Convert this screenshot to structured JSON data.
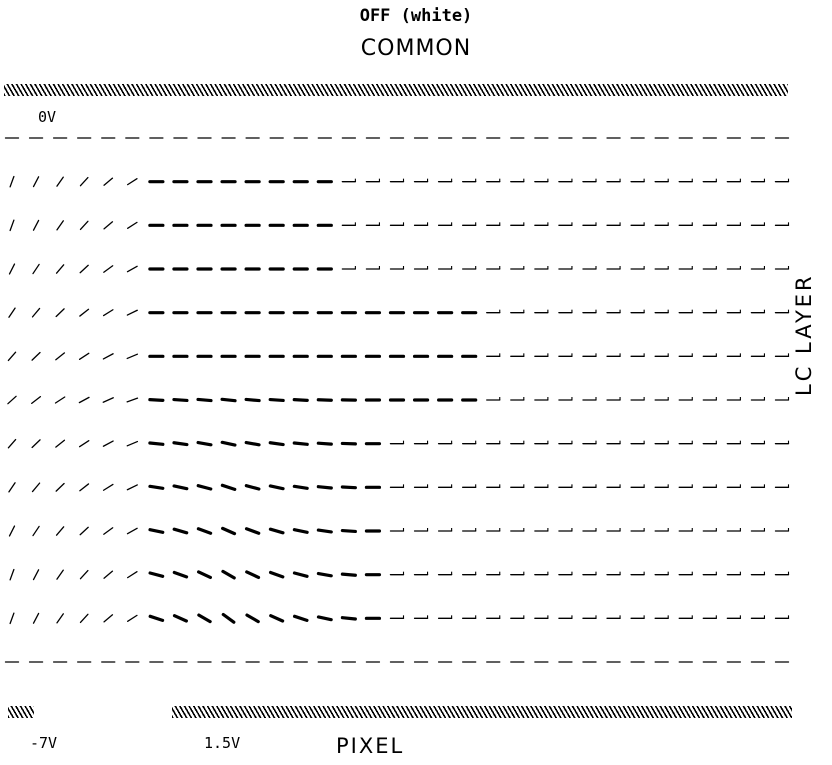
{
  "title": {
    "state": "OFF (white)",
    "common": "COMMON"
  },
  "labels": {
    "common_voltage": "0V",
    "left_pixel_voltage": "-7V",
    "right_pixel_voltage": "1.5V",
    "pixel": "PIXEL",
    "lc_layer": "LC LAYER"
  },
  "director_field": {
    "columns": 33,
    "rows": 13,
    "description_rows": [
      {
        "row": 1
      },
      {
        "row": 2
      },
      {
        "row": 3
      },
      {
        "row": 4
      },
      {
        "row": 5
      },
      {
        "row": 6
      },
      {
        "row": 7
      },
      {
        "row": 8
      },
      {
        "row": 9
      },
      {
        "row": 10
      },
      {
        "row": 11
      },
      {
        "row": 12
      },
      {
        "row": 13
      }
    ]
  }
}
